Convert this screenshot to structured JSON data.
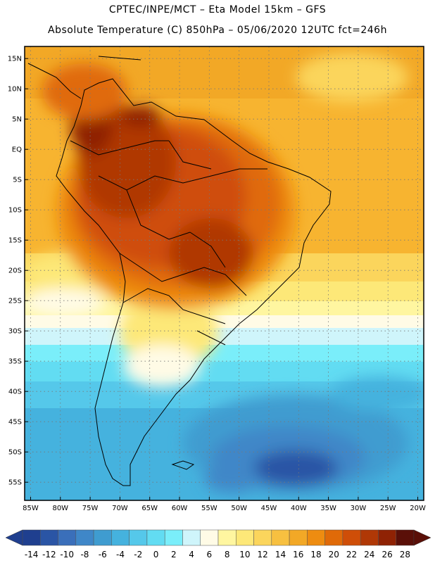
{
  "header": {
    "line1": "CPTEC/INPE/MCT –  Eta Model 15km – GFS",
    "line2": "Absolute Temperature (C) 850hPa – 05/06/2020 12UTC fct=246h"
  },
  "map": {
    "lon_range": [
      -86,
      -19
    ],
    "lat_range": [
      -58,
      17
    ],
    "lat_ticks": [
      "15N",
      "10N",
      "5N",
      "EQ",
      "5S",
      "10S",
      "15S",
      "20S",
      "25S",
      "30S",
      "35S",
      "40S",
      "45S",
      "50S",
      "55S"
    ],
    "lon_ticks": [
      "85W",
      "80W",
      "75W",
      "70W",
      "65W",
      "60W",
      "55W",
      "50W",
      "45W",
      "40W",
      "35W",
      "30W",
      "25W",
      "20W"
    ]
  },
  "colorbar": {
    "labels": [
      "-14",
      "-12",
      "-10",
      "-8",
      "-6",
      "-4",
      "-2",
      "0",
      "2",
      "4",
      "6",
      "8",
      "10",
      "12",
      "14",
      "16",
      "18",
      "20",
      "22",
      "24",
      "26",
      "28"
    ],
    "colors": [
      "#1f3f8f",
      "#2a55a5",
      "#3a6fba",
      "#3f87c8",
      "#3f9cd0",
      "#45b2de",
      "#55c8ea",
      "#62dcf2",
      "#7aeefa",
      "#cff5fb",
      "#fffbe6",
      "#fff6a0",
      "#fde878",
      "#fbd55c",
      "#f7c040",
      "#f2a826",
      "#ee8c10",
      "#e06a08",
      "#cf4e08",
      "#b03806",
      "#8f2204",
      "#5a0f08"
    ]
  }
}
